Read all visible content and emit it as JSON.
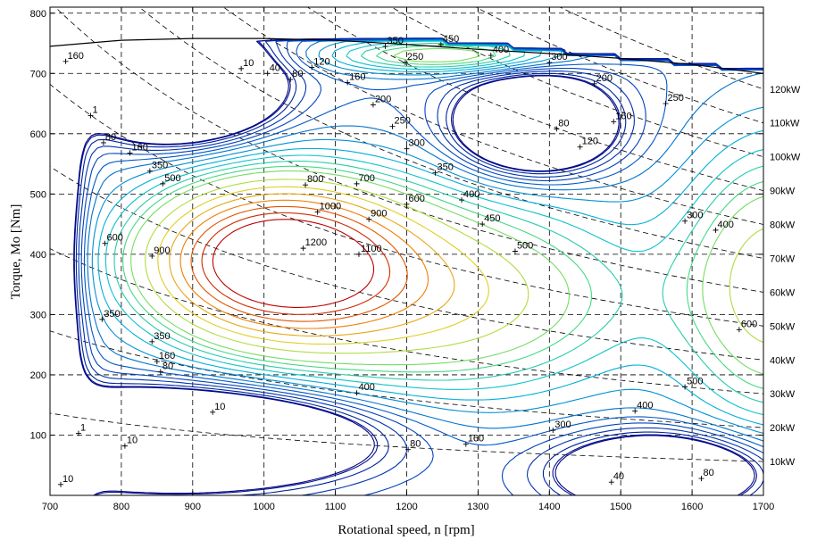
{
  "chart_data": {
    "type": "contour",
    "xlabel": "Rotational speed, n [rpm]",
    "ylabel": "Torque, Mo [Nm]",
    "xlim": [
      700,
      1700
    ],
    "ylim": [
      0,
      810
    ],
    "grid": true,
    "x_ticks": [
      "700",
      "800",
      "900",
      "1000",
      "1100",
      "1200",
      "1300",
      "1400",
      "1500",
      "1600",
      "1700"
    ],
    "y_ticks": [
      "100",
      "200",
      "300",
      "400",
      "500",
      "600",
      "700",
      "800"
    ],
    "power_lines_label": [
      "10kW",
      "20kW",
      "30kW",
      "40kW",
      "50kW",
      "60kW",
      "70kW",
      "80kW",
      "90kW",
      "100kW",
      "110kW",
      "120kW"
    ],
    "power_lines_kw": [
      10,
      20,
      30,
      40,
      50,
      60,
      70,
      80,
      90,
      100,
      110,
      120
    ],
    "max_torque_curve": {
      "rpm": [
        700,
        800,
        900,
        1000,
        1100,
        1200,
        1300,
        1400,
        1500,
        1600,
        1700
      ],
      "torque": [
        745,
        755,
        758,
        758,
        755,
        748,
        740,
        733,
        725,
        715,
        700
      ]
    },
    "contour_levels": [
      1,
      10,
      40,
      80,
      120,
      160,
      200,
      250,
      300,
      350,
      400,
      450,
      500,
      600,
      700,
      800,
      900,
      1000,
      1100,
      1200
    ],
    "contour_labels": [
      {
        "text": "160",
        "rpm": 722,
        "torque": 720
      },
      {
        "text": "1",
        "rpm": 757,
        "torque": 630
      },
      {
        "text": "80",
        "rpm": 775,
        "torque": 585
      },
      {
        "text": "160",
        "rpm": 812,
        "torque": 568
      },
      {
        "text": "350",
        "rpm": 840,
        "torque": 538
      },
      {
        "text": "500",
        "rpm": 858,
        "torque": 517
      },
      {
        "text": "10",
        "rpm": 968,
        "torque": 708
      },
      {
        "text": "40",
        "rpm": 1005,
        "torque": 700
      },
      {
        "text": "80",
        "rpm": 1037,
        "torque": 690
      },
      {
        "text": "120",
        "rpm": 1067,
        "torque": 710
      },
      {
        "text": "160",
        "rpm": 1117,
        "torque": 685
      },
      {
        "text": "350",
        "rpm": 1170,
        "torque": 745
      },
      {
        "text": "450",
        "rpm": 1248,
        "torque": 748
      },
      {
        "text": "400",
        "rpm": 1318,
        "torque": 730
      },
      {
        "text": "250",
        "rpm": 1198,
        "torque": 718
      },
      {
        "text": "300",
        "rpm": 1400,
        "torque": 718
      },
      {
        "text": "200",
        "rpm": 1463,
        "torque": 683
      },
      {
        "text": "200",
        "rpm": 1153,
        "torque": 648
      },
      {
        "text": "250",
        "rpm": 1180,
        "torque": 612
      },
      {
        "text": "300",
        "rpm": 1200,
        "torque": 575
      },
      {
        "text": "80",
        "rpm": 1410,
        "torque": 608
      },
      {
        "text": "160",
        "rpm": 1490,
        "torque": 620
      },
      {
        "text": "120",
        "rpm": 1443,
        "torque": 578
      },
      {
        "text": "250",
        "rpm": 1563,
        "torque": 650
      },
      {
        "text": "350",
        "rpm": 1240,
        "torque": 535
      },
      {
        "text": "400",
        "rpm": 1277,
        "torque": 490
      },
      {
        "text": "800",
        "rpm": 1058,
        "torque": 515
      },
      {
        "text": "700",
        "rpm": 1130,
        "torque": 517
      },
      {
        "text": "600",
        "rpm": 1200,
        "torque": 483
      },
      {
        "text": "1000",
        "rpm": 1075,
        "torque": 470
      },
      {
        "text": "900",
        "rpm": 1147,
        "torque": 458
      },
      {
        "text": "450",
        "rpm": 1306,
        "torque": 450
      },
      {
        "text": "500",
        "rpm": 1352,
        "torque": 405
      },
      {
        "text": "1200",
        "rpm": 1055,
        "torque": 410
      },
      {
        "text": "1100",
        "rpm": 1133,
        "torque": 400
      },
      {
        "text": "600",
        "rpm": 777,
        "torque": 418
      },
      {
        "text": "900",
        "rpm": 843,
        "torque": 397
      },
      {
        "text": "300",
        "rpm": 1590,
        "torque": 455
      },
      {
        "text": "400",
        "rpm": 1633,
        "torque": 440
      },
      {
        "text": "350",
        "rpm": 773,
        "torque": 292
      },
      {
        "text": "350",
        "rpm": 843,
        "torque": 255
      },
      {
        "text": "160",
        "rpm": 850,
        "torque": 222
      },
      {
        "text": "80",
        "rpm": 855,
        "torque": 205
      },
      {
        "text": "600",
        "rpm": 1666,
        "torque": 275
      },
      {
        "text": "400",
        "rpm": 1130,
        "torque": 170
      },
      {
        "text": "500",
        "rpm": 1590,
        "torque": 180
      },
      {
        "text": "400",
        "rpm": 1520,
        "torque": 140
      },
      {
        "text": "10",
        "rpm": 928,
        "torque": 138
      },
      {
        "text": "300",
        "rpm": 1405,
        "torque": 108
      },
      {
        "text": "1",
        "rpm": 740,
        "torque": 103
      },
      {
        "text": "160",
        "rpm": 1283,
        "torque": 85
      },
      {
        "text": "10",
        "rpm": 805,
        "torque": 82
      },
      {
        "text": "80",
        "rpm": 1202,
        "torque": 76
      },
      {
        "text": "40",
        "rpm": 1487,
        "torque": 22
      },
      {
        "text": "80",
        "rpm": 1613,
        "torque": 28
      },
      {
        "text": "10",
        "rpm": 715,
        "torque": 18
      }
    ]
  }
}
